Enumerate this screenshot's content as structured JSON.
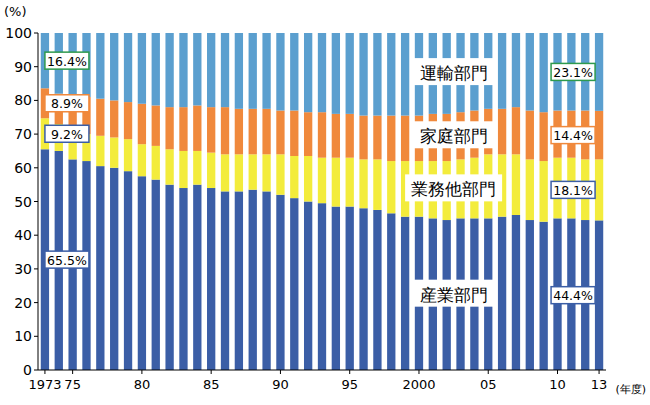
{
  "chart_data": {
    "type": "bar",
    "stacked": true,
    "data_labels": true,
    "x_label": "(年度)",
    "y_label": "(%)",
    "categories": [
      "1973",
      null,
      "75",
      null,
      null,
      null,
      null,
      "80",
      null,
      null,
      null,
      null,
      "85",
      null,
      null,
      null,
      null,
      "90",
      null,
      null,
      null,
      null,
      "95",
      null,
      null,
      null,
      null,
      "2000",
      null,
      null,
      null,
      null,
      "05",
      null,
      null,
      null,
      null,
      "10",
      null,
      null,
      "13"
    ],
    "ylim": [
      0,
      100
    ],
    "yticks": [
      0,
      10,
      20,
      30,
      40,
      50,
      60,
      70,
      80,
      90,
      100
    ],
    "series": [
      {
        "name": "産業部門",
        "color": "#3b5ea6",
        "values": [
          65.5,
          65,
          62.5,
          62,
          60.5,
          60,
          59,
          57.5,
          56.5,
          55,
          54,
          55,
          54,
          53,
          53,
          53.5,
          53,
          52,
          51,
          50,
          49.5,
          48.5,
          48.5,
          48,
          47.5,
          46.5,
          45.5,
          45.5,
          45,
          44.5,
          45,
          45,
          45,
          45.5,
          46,
          44.5,
          44,
          45,
          45,
          44.5,
          44.4
        ],
        "value_labels": [
          "65.5%",
          null,
          null,
          null,
          null,
          null,
          null,
          null,
          null,
          null,
          null,
          null,
          null,
          null,
          null,
          null,
          null,
          null,
          null,
          null,
          null,
          null,
          null,
          null,
          null,
          null,
          null,
          null,
          null,
          null,
          null,
          null,
          null,
          null,
          null,
          null,
          null,
          null,
          null,
          null,
          "44.4%"
        ]
      },
      {
        "name": "業務他部門",
        "color": "#f3ec3c",
        "values": [
          9.2,
          8,
          8.5,
          8,
          9,
          9,
          9.5,
          9.5,
          10,
          10.5,
          11,
          10,
          10.5,
          11,
          11,
          10.5,
          11,
          12,
          12.5,
          13.5,
          13.5,
          14.5,
          14.5,
          14.5,
          15,
          15.5,
          16.5,
          16.5,
          17,
          17.5,
          17.5,
          18,
          19,
          18.5,
          18,
          18,
          18,
          18,
          18,
          18,
          18.1
        ],
        "value_labels": [
          "9.2%",
          null,
          null,
          null,
          null,
          null,
          null,
          null,
          null,
          null,
          null,
          null,
          null,
          null,
          null,
          null,
          null,
          null,
          null,
          null,
          null,
          null,
          null,
          null,
          null,
          null,
          null,
          null,
          null,
          null,
          null,
          null,
          null,
          null,
          null,
          null,
          null,
          null,
          null,
          null,
          "18.1%"
        ]
      },
      {
        "name": "家庭部門",
        "color": "#f0893c",
        "values": [
          8.9,
          9,
          10.5,
          11,
          11,
          11,
          11,
          12,
          12,
          12.5,
          13,
          13.5,
          13.5,
          14,
          13.5,
          13.5,
          13.5,
          13,
          13.5,
          13,
          13.5,
          13,
          13,
          13,
          13,
          13.5,
          13.5,
          13.5,
          14,
          14,
          14,
          14,
          13.5,
          13.5,
          14,
          14.5,
          14.5,
          14,
          14,
          14.5,
          14.4
        ],
        "value_labels": [
          "8.9%",
          null,
          null,
          null,
          null,
          null,
          null,
          null,
          null,
          null,
          null,
          null,
          null,
          null,
          null,
          null,
          null,
          null,
          null,
          null,
          null,
          null,
          null,
          null,
          null,
          null,
          null,
          null,
          null,
          null,
          null,
          null,
          null,
          null,
          null,
          null,
          null,
          null,
          null,
          null,
          "14.4%"
        ]
      },
      {
        "name": "運輸部門",
        "color": "#5b9fcf",
        "values": [
          16.4,
          18,
          18.5,
          19,
          19.5,
          20,
          20.5,
          21,
          21.5,
          22,
          22,
          21.5,
          22,
          22,
          22.5,
          22.5,
          22.5,
          23,
          23,
          23.5,
          23.5,
          24,
          24,
          24.5,
          24.5,
          24.5,
          24.5,
          24.5,
          24,
          24,
          23.5,
          23,
          22.5,
          22.5,
          22,
          23,
          23.5,
          23,
          23,
          23,
          23.1
        ],
        "value_labels": [
          "16.4%",
          null,
          null,
          null,
          null,
          null,
          null,
          null,
          null,
          null,
          null,
          null,
          null,
          null,
          null,
          null,
          null,
          null,
          null,
          null,
          null,
          null,
          null,
          null,
          null,
          null,
          null,
          null,
          null,
          null,
          null,
          null,
          null,
          null,
          null,
          null,
          null,
          null,
          null,
          null,
          "23.1%"
        ]
      }
    ]
  }
}
